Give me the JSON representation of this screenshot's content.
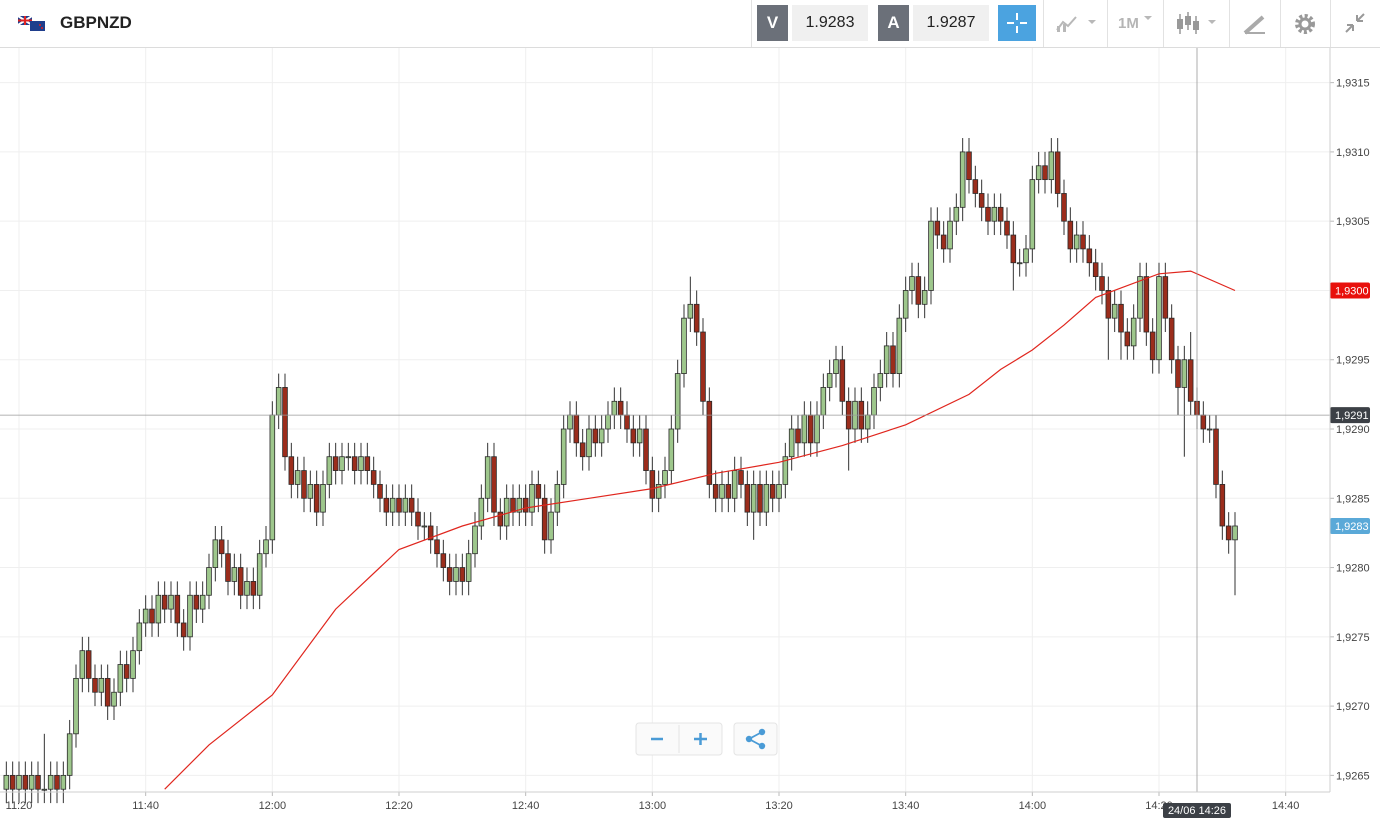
{
  "header": {
    "symbol": "GBPNZD",
    "bid_label": "V",
    "bid": 1.9283,
    "ask_label": "A",
    "ask": 1.9287,
    "timeframe": "1M"
  },
  "chart_data": {
    "type": "candlestick",
    "x": [
      "11:18",
      "11:19",
      "11:20",
      "11:21",
      "11:22",
      "11:23",
      "11:24",
      "11:25",
      "11:26",
      "11:27",
      "11:28",
      "11:29",
      "11:30",
      "11:31",
      "11:32",
      "11:33",
      "11:34",
      "11:35",
      "11:36",
      "11:37",
      "11:38",
      "11:39",
      "11:40",
      "11:41",
      "11:42",
      "11:43",
      "11:44",
      "11:45",
      "11:46",
      "11:47",
      "11:48",
      "11:49",
      "11:50",
      "11:51",
      "11:52",
      "11:53",
      "11:54",
      "11:55",
      "11:56",
      "11:57",
      "11:58",
      "11:59",
      "12:00",
      "12:01",
      "12:02",
      "12:03",
      "12:04",
      "12:05",
      "12:06",
      "12:07",
      "12:08",
      "12:09",
      "12:10",
      "12:11",
      "12:12",
      "12:13",
      "12:14",
      "12:15",
      "12:16",
      "12:17",
      "12:18",
      "12:19",
      "12:20",
      "12:21",
      "12:22",
      "12:23",
      "12:24",
      "12:25",
      "12:26",
      "12:27",
      "12:28",
      "12:29",
      "12:30",
      "12:31",
      "12:32",
      "12:33",
      "12:34",
      "12:35",
      "12:36",
      "12:37",
      "12:38",
      "12:39",
      "12:40",
      "12:41",
      "12:42",
      "12:43",
      "12:44",
      "12:45",
      "12:46",
      "12:47",
      "12:48",
      "12:49",
      "12:50",
      "12:51",
      "12:52",
      "12:53",
      "12:54",
      "12:55",
      "12:56",
      "12:57",
      "12:58",
      "12:59",
      "13:00",
      "13:01",
      "13:02",
      "13:03",
      "13:04",
      "13:05",
      "13:06",
      "13:07",
      "13:08",
      "13:09",
      "13:10",
      "13:11",
      "13:12",
      "13:13",
      "13:14",
      "13:15",
      "13:16",
      "13:17",
      "13:18",
      "13:19",
      "13:20",
      "13:21",
      "13:22",
      "13:23",
      "13:24",
      "13:25",
      "13:26",
      "13:27",
      "13:28",
      "13:29",
      "13:30",
      "13:31",
      "13:32",
      "13:33",
      "13:34",
      "13:35",
      "13:36",
      "13:37",
      "13:38",
      "13:39",
      "13:40",
      "13:41",
      "13:42",
      "13:43",
      "13:44",
      "13:45",
      "13:46",
      "13:47",
      "13:48",
      "13:49",
      "13:50",
      "13:51",
      "13:52",
      "13:53",
      "13:54",
      "13:55",
      "13:56",
      "13:57",
      "13:58",
      "13:59",
      "14:00",
      "14:01",
      "14:02",
      "14:03",
      "14:04",
      "14:05",
      "14:06",
      "14:07",
      "14:08",
      "14:09",
      "14:10",
      "14:11",
      "14:12",
      "14:13",
      "14:14",
      "14:15",
      "14:16",
      "14:17",
      "14:18",
      "14:19",
      "14:20",
      "14:21",
      "14:22",
      "14:23",
      "14:24",
      "14:25",
      "14:26",
      "14:27",
      "14:28",
      "14:29",
      "14:30",
      "14:31",
      "14:32"
    ],
    "open": [
      1.9264,
      1.9265,
      1.9264,
      1.9265,
      1.9264,
      1.9265,
      1.9264,
      1.9264,
      1.9265,
      1.9264,
      1.9265,
      1.9268,
      1.9272,
      1.9274,
      1.9272,
      1.9271,
      1.9272,
      1.927,
      1.9271,
      1.9273,
      1.9272,
      1.9274,
      1.9276,
      1.9277,
      1.9276,
      1.9278,
      1.9277,
      1.9278,
      1.9276,
      1.9275,
      1.9278,
      1.9277,
      1.9278,
      1.928,
      1.9282,
      1.9281,
      1.9279,
      1.928,
      1.9278,
      1.9279,
      1.9278,
      1.9281,
      1.9282,
      1.9291,
      1.9293,
      1.9288,
      1.9286,
      1.9287,
      1.9285,
      1.9286,
      1.9284,
      1.9286,
      1.9288,
      1.9287,
      1.9288,
      1.9288,
      1.9287,
      1.9288,
      1.9287,
      1.9286,
      1.9285,
      1.9284,
      1.9285,
      1.9284,
      1.9285,
      1.9284,
      1.9283,
      1.9283,
      1.9282,
      1.9281,
      1.928,
      1.9279,
      1.928,
      1.9279,
      1.9281,
      1.9283,
      1.9285,
      1.9288,
      1.9284,
      1.9283,
      1.9285,
      1.9284,
      1.9285,
      1.9284,
      1.9286,
      1.9285,
      1.9282,
      1.9284,
      1.9286,
      1.929,
      1.9291,
      1.9289,
      1.9288,
      1.929,
      1.9289,
      1.929,
      1.9291,
      1.9292,
      1.9291,
      1.929,
      1.9289,
      1.929,
      1.9287,
      1.9285,
      1.9286,
      1.9287,
      1.929,
      1.9294,
      1.9298,
      1.9299,
      1.9297,
      1.9292,
      1.9286,
      1.9285,
      1.9286,
      1.9285,
      1.9287,
      1.9286,
      1.9284,
      1.9286,
      1.9284,
      1.9286,
      1.9285,
      1.9286,
      1.9288,
      1.929,
      1.9289,
      1.9291,
      1.9289,
      1.9291,
      1.9293,
      1.9294,
      1.9295,
      1.9292,
      1.929,
      1.9292,
      1.929,
      1.9291,
      1.9293,
      1.9294,
      1.9296,
      1.9294,
      1.9298,
      1.93,
      1.9301,
      1.9299,
      1.93,
      1.9305,
      1.9304,
      1.9303,
      1.9305,
      1.9306,
      1.931,
      1.9308,
      1.9307,
      1.9306,
      1.9305,
      1.9306,
      1.9305,
      1.9304,
      1.9302,
      1.9302,
      1.9303,
      1.9308,
      1.9309,
      1.9308,
      1.931,
      1.9307,
      1.9305,
      1.9303,
      1.9304,
      1.9303,
      1.9302,
      1.9301,
      1.93,
      1.9298,
      1.9299,
      1.9297,
      1.9296,
      1.9298,
      1.9301,
      1.9297,
      1.9295,
      1.9301,
      1.9298,
      1.9295,
      1.9293,
      1.9295,
      1.9292,
      1.9291,
      1.929,
      1.929,
      1.9286,
      1.9283,
      1.9282
    ],
    "high": [
      1.9266,
      1.9266,
      1.9266,
      1.9266,
      1.9266,
      1.9266,
      1.9268,
      1.9266,
      1.9266,
      1.9266,
      1.9269,
      1.9273,
      1.9275,
      1.9275,
      1.9273,
      1.9273,
      1.9273,
      1.9272,
      1.9274,
      1.9274,
      1.9275,
      1.9277,
      1.9278,
      1.9278,
      1.9279,
      1.9279,
      1.9279,
      1.9279,
      1.9277,
      1.9279,
      1.9279,
      1.9279,
      1.9281,
      1.9283,
      1.9283,
      1.9282,
      1.9281,
      1.9281,
      1.928,
      1.928,
      1.9282,
      1.9283,
      1.9292,
      1.9294,
      1.9294,
      1.9289,
      1.9288,
      1.9288,
      1.9287,
      1.9287,
      1.9287,
      1.9289,
      1.9289,
      1.9289,
      1.9289,
      1.9289,
      1.9289,
      1.9289,
      1.9288,
      1.9287,
      1.9286,
      1.9286,
      1.9286,
      1.9286,
      1.9286,
      1.9285,
      1.9284,
      1.9284,
      1.9283,
      1.9282,
      1.9281,
      1.9281,
      1.9281,
      1.9282,
      1.9284,
      1.9286,
      1.9289,
      1.9289,
      1.9285,
      1.9286,
      1.9286,
      1.9286,
      1.9286,
      1.9287,
      1.9287,
      1.9286,
      1.9285,
      1.9287,
      1.9291,
      1.9292,
      1.9292,
      1.929,
      1.9291,
      1.9291,
      1.9291,
      1.9292,
      1.9293,
      1.9293,
      1.9292,
      1.9291,
      1.9291,
      1.9291,
      1.9288,
      1.9287,
      1.9288,
      1.9291,
      1.9295,
      1.9299,
      1.9301,
      1.93,
      1.9298,
      1.9293,
      1.9287,
      1.9287,
      1.9287,
      1.9288,
      1.9288,
      1.9287,
      1.9287,
      1.9287,
      1.9287,
      1.9287,
      1.9287,
      1.9289,
      1.9291,
      1.9291,
      1.9292,
      1.9292,
      1.9292,
      1.9294,
      1.9295,
      1.9296,
      1.9296,
      1.9293,
      1.9293,
      1.9293,
      1.9292,
      1.9294,
      1.9295,
      1.9297,
      1.9297,
      1.9299,
      1.9301,
      1.9302,
      1.9302,
      1.9301,
      1.9306,
      1.9306,
      1.9305,
      1.9306,
      1.9307,
      1.9311,
      1.9311,
      1.9309,
      1.9308,
      1.9307,
      1.9307,
      1.9307,
      1.9306,
      1.9305,
      1.9303,
      1.9304,
      1.9309,
      1.931,
      1.931,
      1.9311,
      1.9311,
      1.9308,
      1.9306,
      1.9305,
      1.9305,
      1.9304,
      1.9303,
      1.9302,
      1.9301,
      1.93,
      1.93,
      1.9298,
      1.9299,
      1.9302,
      1.9302,
      1.9298,
      1.9302,
      1.9302,
      1.9299,
      1.9296,
      1.9296,
      1.9297,
      1.9293,
      1.9292,
      1.9291,
      1.9291,
      1.9287,
      1.9284,
      1.9284
    ],
    "low": [
      1.9263,
      1.9263,
      1.9263,
      1.9263,
      1.9263,
      1.9263,
      1.9263,
      1.9263,
      1.9263,
      1.9263,
      1.9264,
      1.9267,
      1.9271,
      1.9271,
      1.927,
      1.927,
      1.9269,
      1.9269,
      1.927,
      1.9271,
      1.9271,
      1.9273,
      1.9275,
      1.9275,
      1.9275,
      1.9276,
      1.9276,
      1.9275,
      1.9274,
      1.9274,
      1.9276,
      1.9276,
      1.9277,
      1.9279,
      1.928,
      1.9278,
      1.9278,
      1.9277,
      1.9277,
      1.9277,
      1.9277,
      1.928,
      1.9281,
      1.929,
      1.9287,
      1.9285,
      1.9285,
      1.9284,
      1.9284,
      1.9283,
      1.9283,
      1.9285,
      1.9286,
      1.9286,
      1.9287,
      1.9286,
      1.9286,
      1.9286,
      1.9285,
      1.9284,
      1.9283,
      1.9283,
      1.9283,
      1.9283,
      1.9283,
      1.9282,
      1.9282,
      1.9281,
      1.928,
      1.9279,
      1.9278,
      1.9278,
      1.9278,
      1.9278,
      1.928,
      1.9282,
      1.9284,
      1.9283,
      1.9282,
      1.9282,
      1.9283,
      1.9283,
      1.9283,
      1.9283,
      1.9284,
      1.9281,
      1.9281,
      1.9283,
      1.9285,
      1.9289,
      1.9288,
      1.9287,
      1.9287,
      1.9288,
      1.9288,
      1.9289,
      1.929,
      1.929,
      1.9289,
      1.9288,
      1.9288,
      1.9286,
      1.9284,
      1.9284,
      1.9285,
      1.9286,
      1.9289,
      1.9293,
      1.9297,
      1.9296,
      1.9291,
      1.9285,
      1.9284,
      1.9284,
      1.9284,
      1.9284,
      1.9285,
      1.9283,
      1.9282,
      1.9283,
      1.9283,
      1.9284,
      1.9284,
      1.9285,
      1.9287,
      1.9288,
      1.9288,
      1.9288,
      1.9288,
      1.929,
      1.9292,
      1.9293,
      1.9291,
      1.9287,
      1.9289,
      1.9289,
      1.9289,
      1.929,
      1.9292,
      1.9293,
      1.9293,
      1.9293,
      1.9297,
      1.9299,
      1.9298,
      1.9298,
      1.9299,
      1.9303,
      1.9302,
      1.9302,
      1.9304,
      1.9305,
      1.9307,
      1.9306,
      1.9305,
      1.9304,
      1.9304,
      1.9304,
      1.9303,
      1.93,
      1.9301,
      1.9301,
      1.9302,
      1.9307,
      1.9307,
      1.9307,
      1.9306,
      1.9304,
      1.9302,
      1.9302,
      1.9302,
      1.9301,
      1.93,
      1.9299,
      1.9295,
      1.9297,
      1.9295,
      1.9295,
      1.9295,
      1.9297,
      1.9296,
      1.9294,
      1.9294,
      1.9297,
      1.9294,
      1.9291,
      1.9288,
      1.9291,
      1.929,
      1.9289,
      1.9289,
      1.9285,
      1.9282,
      1.9281,
      1.9278
    ],
    "close": [
      1.9265,
      1.9264,
      1.9265,
      1.9264,
      1.9265,
      1.9264,
      1.9264,
      1.9265,
      1.9264,
      1.9265,
      1.9268,
      1.9272,
      1.9274,
      1.9272,
      1.9271,
      1.9272,
      1.927,
      1.9271,
      1.9273,
      1.9272,
      1.9274,
      1.9276,
      1.9277,
      1.9276,
      1.9278,
      1.9277,
      1.9278,
      1.9276,
      1.9275,
      1.9278,
      1.9277,
      1.9278,
      1.928,
      1.9282,
      1.9281,
      1.9279,
      1.928,
      1.9278,
      1.9279,
      1.9278,
      1.9281,
      1.9282,
      1.9291,
      1.9293,
      1.9288,
      1.9286,
      1.9287,
      1.9285,
      1.9286,
      1.9284,
      1.9286,
      1.9288,
      1.9287,
      1.9288,
      1.9288,
      1.9287,
      1.9288,
      1.9287,
      1.9286,
      1.9285,
      1.9284,
      1.9285,
      1.9284,
      1.9285,
      1.9284,
      1.9283,
      1.9283,
      1.9282,
      1.9281,
      1.928,
      1.9279,
      1.928,
      1.9279,
      1.9281,
      1.9283,
      1.9285,
      1.9288,
      1.9284,
      1.9283,
      1.9285,
      1.9284,
      1.9285,
      1.9284,
      1.9286,
      1.9285,
      1.9282,
      1.9284,
      1.9286,
      1.929,
      1.9291,
      1.9289,
      1.9288,
      1.929,
      1.9289,
      1.929,
      1.9291,
      1.9292,
      1.9291,
      1.929,
      1.9289,
      1.929,
      1.9287,
      1.9285,
      1.9286,
      1.9287,
      1.929,
      1.9294,
      1.9298,
      1.9299,
      1.9297,
      1.9292,
      1.9286,
      1.9285,
      1.9286,
      1.9285,
      1.9287,
      1.9286,
      1.9284,
      1.9286,
      1.9284,
      1.9286,
      1.9285,
      1.9286,
      1.9288,
      1.929,
      1.9289,
      1.9291,
      1.9289,
      1.9291,
      1.9293,
      1.9294,
      1.9295,
      1.9292,
      1.929,
      1.9292,
      1.929,
      1.9291,
      1.9293,
      1.9294,
      1.9296,
      1.9294,
      1.9298,
      1.93,
      1.9301,
      1.9299,
      1.93,
      1.9305,
      1.9304,
      1.9303,
      1.9305,
      1.9306,
      1.931,
      1.9308,
      1.9307,
      1.9306,
      1.9305,
      1.9306,
      1.9305,
      1.9304,
      1.9302,
      1.9302,
      1.9303,
      1.9308,
      1.9309,
      1.9308,
      1.931,
      1.9307,
      1.9305,
      1.9303,
      1.9304,
      1.9303,
      1.9302,
      1.9301,
      1.93,
      1.9298,
      1.9299,
      1.9297,
      1.9296,
      1.9298,
      1.9301,
      1.9297,
      1.9295,
      1.9301,
      1.9298,
      1.9295,
      1.9293,
      1.9295,
      1.9292,
      1.9291,
      1.929,
      1.929,
      1.9286,
      1.9283,
      1.9282,
      1.9283
    ],
    "up_color": "#9ec78c",
    "down_color": "#9b2d1c",
    "overlay": {
      "color": "#e0261e",
      "x": [
        "11:43",
        "11:50",
        "12:00",
        "12:10",
        "12:20",
        "12:30",
        "12:40",
        "12:50",
        "13:00",
        "13:10",
        "13:20",
        "13:30",
        "13:40",
        "13:50",
        "13:55",
        "14:00",
        "14:05",
        "14:10",
        "14:20",
        "14:25",
        "14:32"
      ],
      "values": [
        1.9264,
        1.92672,
        1.92708,
        1.9277,
        1.92813,
        1.9283,
        1.92843,
        1.9285,
        1.92857,
        1.92868,
        1.92876,
        1.92888,
        1.92903,
        1.92925,
        1.92943,
        1.92957,
        1.92975,
        1.92995,
        1.93012,
        1.93014,
        1.93
      ]
    },
    "xlim": [
      "11:17",
      "14:47"
    ],
    "xticks": [
      "11:20",
      "11:40",
      "12:00",
      "12:20",
      "12:40",
      "13:00",
      "13:20",
      "13:40",
      "14:00",
      "14:20",
      "14:40"
    ],
    "ylim": [
      1.92638,
      1.93175
    ],
    "yticks": [
      {
        "value": 1.9265,
        "label": "1,9265"
      },
      {
        "value": 1.927,
        "label": "1,9270"
      },
      {
        "value": 1.9275,
        "label": "1,9275"
      },
      {
        "value": 1.928,
        "label": "1,9280"
      },
      {
        "value": 1.9285,
        "label": "1,9285"
      },
      {
        "value": 1.929,
        "label": "1,9290"
      },
      {
        "value": 1.9295,
        "label": "1,9295"
      },
      {
        "value": 1.93,
        "label": "1,9300"
      },
      {
        "value": 1.9305,
        "label": "1,9305"
      },
      {
        "value": 1.931,
        "label": "1,9310"
      },
      {
        "value": 1.9315,
        "label": "1,9315"
      }
    ],
    "grid": true,
    "price_tags": [
      {
        "value": 1.93,
        "label": "1,9300",
        "color": "#e8100c"
      },
      {
        "value": 1.9291,
        "label": "1,9291",
        "color": "#3c4046"
      },
      {
        "value": 1.9283,
        "label": "1,9283",
        "color": "#5aa9d8"
      }
    ],
    "crosshair": {
      "x": "14:26",
      "label": "24/06 14:26",
      "y": 1.9291
    }
  }
}
